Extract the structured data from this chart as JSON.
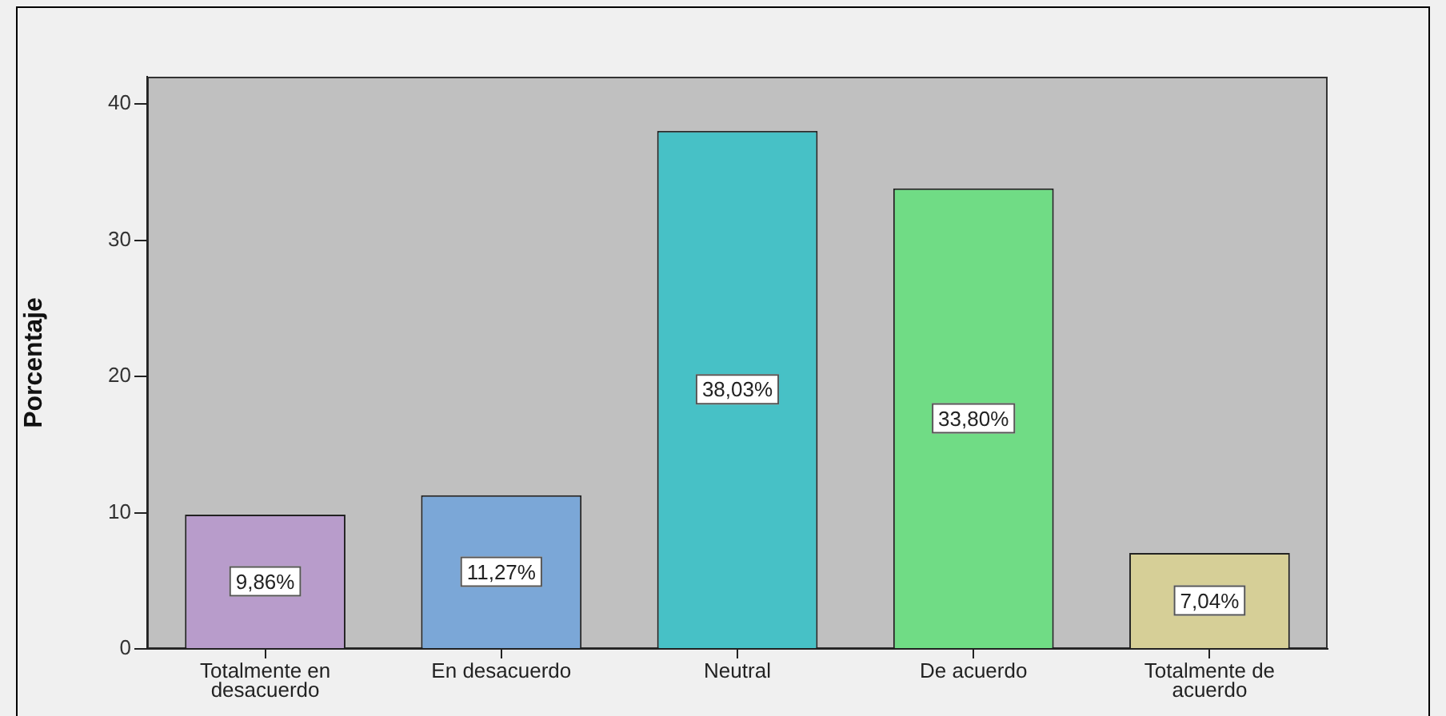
{
  "chart_data": {
    "type": "bar",
    "ylabel": "Porcentaje",
    "categories": [
      "Totalmente en desacuerdo",
      "En desacuerdo",
      "Neutral",
      "De acuerdo",
      "Totalmente de acuerdo"
    ],
    "values": [
      9.86,
      11.27,
      38.03,
      33.8,
      7.04
    ],
    "colors": [
      "#b89ccb",
      "#7ba7d7",
      "#47c1c6",
      "#70dc85",
      "#d6cf97"
    ],
    "value_labels": [
      "9,86%",
      "11,27%",
      "38,03%",
      "33,80%",
      "7,04%"
    ],
    "ylim": [
      0,
      42
    ],
    "yticks": [
      0,
      10,
      20,
      30,
      40
    ],
    "grid": false,
    "legend": false
  }
}
